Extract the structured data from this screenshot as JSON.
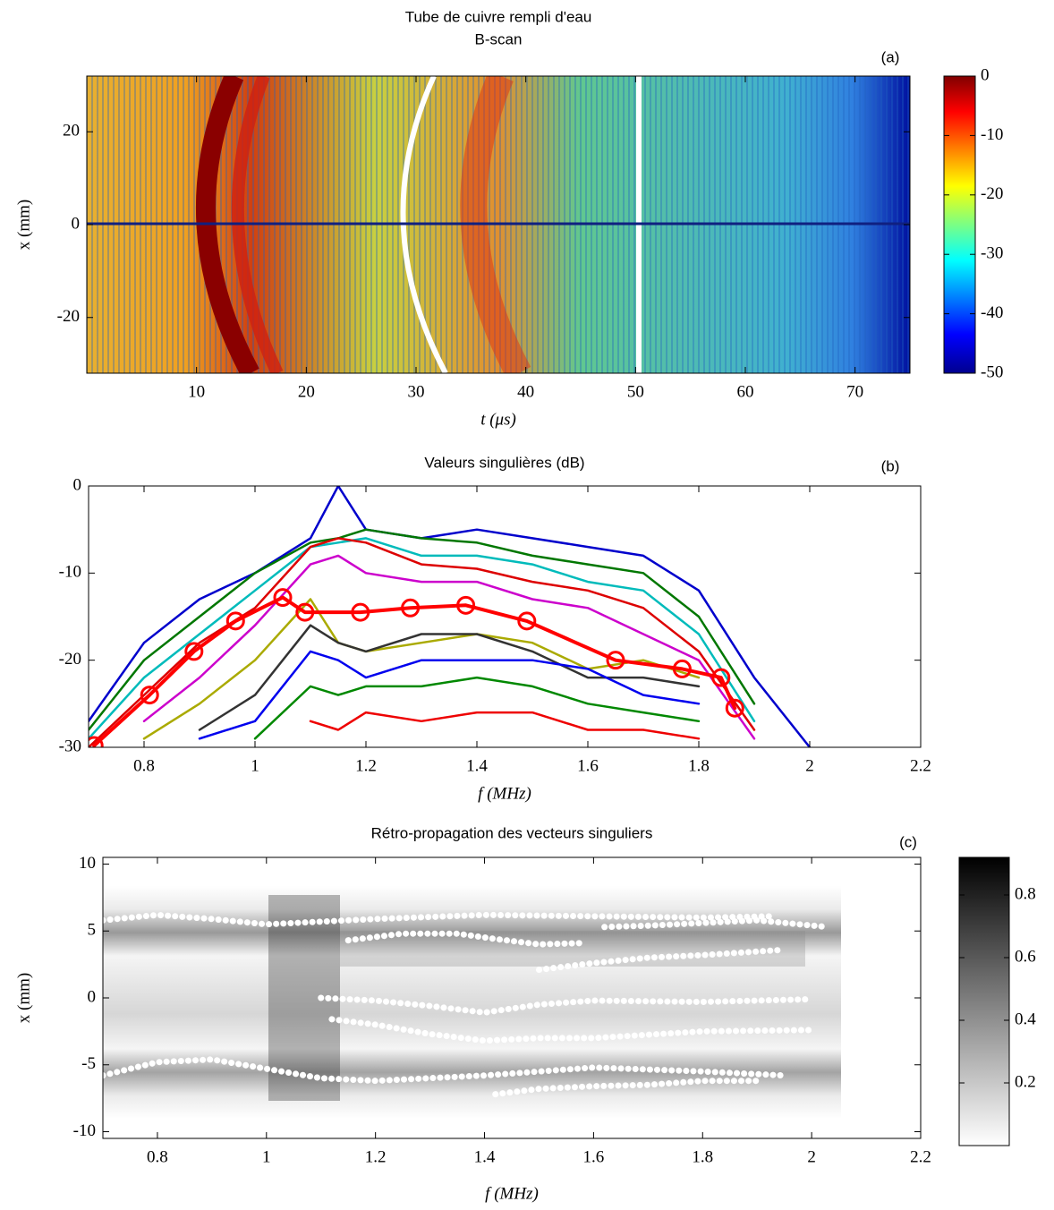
{
  "chart_data": [
    {
      "type": "heatmap",
      "title": "Tube de cuivre rempli d'eau",
      "subtitle": "B-scan",
      "panel_label": "(a)",
      "x_label": "t (μs)",
      "y_label": "x (mm)",
      "xlim": [
        0,
        75
      ],
      "xticks": [
        10,
        20,
        30,
        40,
        50,
        60,
        70
      ],
      "ylim": [
        -32,
        32
      ],
      "yticks": [
        -20,
        0,
        20
      ],
      "colormap": "jet",
      "clim": [
        -50,
        0
      ],
      "cticks": [
        0,
        -10,
        -20,
        -30,
        -40,
        -50
      ]
    },
    {
      "type": "line",
      "title": "Valeurs singulières (dB)",
      "panel_label": "(b)",
      "x_label": "f (MHz)",
      "xlim": [
        0.7,
        2.2
      ],
      "xticks": [
        0.8,
        1,
        1.2,
        1.4,
        1.6,
        1.8,
        2,
        2.2
      ],
      "ylim": [
        -30,
        0
      ],
      "yticks": [
        0,
        -10,
        -20,
        -30
      ],
      "x": [
        0.7,
        0.8,
        0.9,
        1.0,
        1.1,
        1.15,
        1.2,
        1.3,
        1.4,
        1.5,
        1.6,
        1.7,
        1.8,
        1.9,
        2.0
      ],
      "series": [
        {
          "color": "#0000cc",
          "values": [
            -27,
            -18,
            -13,
            -10,
            -6,
            0,
            -5,
            -6,
            -5,
            -6,
            -7,
            -8,
            -12,
            -22,
            -30
          ]
        },
        {
          "color": "#007700",
          "values": [
            -28,
            -20,
            -15,
            -10,
            -6.5,
            -6,
            -5,
            -6,
            -6.5,
            -8,
            -9,
            -10,
            -15,
            -25,
            null
          ]
        },
        {
          "color": "#00bbbb",
          "values": [
            -29,
            -22,
            -17,
            -12,
            -7,
            -6.5,
            -6,
            -8,
            -8,
            -9,
            -11,
            -12,
            -17,
            -27,
            null
          ]
        },
        {
          "color": "#dd0000",
          "values": [
            -30,
            -24,
            -18,
            -14,
            -7,
            -6,
            -6.5,
            -9,
            -9.5,
            -11,
            -12,
            -14,
            -19,
            -28,
            null
          ]
        },
        {
          "color": "#cc00cc",
          "values": [
            null,
            -27,
            -22,
            -16,
            -9,
            -8,
            -10,
            -11,
            -11,
            -13,
            -14,
            -17,
            -20,
            -29,
            null
          ]
        },
        {
          "color": "#aaaa00",
          "values": [
            null,
            -29,
            -25,
            -20,
            -13,
            -18,
            -19,
            -18,
            -17,
            -18,
            -21,
            -20,
            -22,
            null,
            null
          ]
        },
        {
          "color": "#333333",
          "values": [
            null,
            null,
            -28,
            -24,
            -16,
            -18,
            -19,
            -17,
            -17,
            -19,
            -22,
            -22,
            -23,
            null,
            null
          ]
        },
        {
          "color": "#0000ee",
          "values": [
            null,
            null,
            -29,
            -27,
            -19,
            -20,
            -22,
            -20,
            -20,
            -20,
            -21,
            -24,
            -25,
            null,
            null
          ]
        },
        {
          "color": "#008800",
          "values": [
            null,
            null,
            null,
            -29,
            -23,
            -24,
            -23,
            -23,
            -22,
            -23,
            -25,
            -26,
            -27,
            null,
            null
          ]
        },
        {
          "color": "#ee0000",
          "values": [
            null,
            null,
            null,
            null,
            -27,
            -28,
            -26,
            -27,
            -26,
            -26,
            -28,
            -28,
            -29,
            null,
            null
          ]
        },
        {
          "color": "#ff0000",
          "marker": "circle",
          "x": [
            0.71,
            0.81,
            0.89,
            0.965,
            1.05,
            1.09,
            1.19,
            1.28,
            1.38,
            1.49,
            1.65,
            1.77,
            1.84,
            1.865
          ],
          "values": [
            -29.8,
            -24,
            -19,
            -15.5,
            -12.8,
            -14.5,
            -14.5,
            -14,
            -13.7,
            -15.5,
            -20,
            -21,
            -22,
            -25.5
          ]
        }
      ]
    },
    {
      "type": "heatmap",
      "title": "Rétro-propagation des vecteurs singuliers",
      "panel_label": "(c)",
      "x_label": "f (MHz)",
      "y_label": "x (mm)",
      "xlim": [
        0.7,
        2.2
      ],
      "xticks": [
        0.8,
        1,
        1.2,
        1.4,
        1.6,
        1.8,
        2,
        2.2
      ],
      "ylim": [
        -10.5,
        10.5
      ],
      "yticks": [
        10,
        5,
        0,
        -5,
        -10
      ],
      "colormap": "gray",
      "clim": [
        0,
        0.92
      ],
      "cticks": [
        0.8,
        0.6,
        0.4,
        0.2
      ],
      "series": [
        {
          "color": "#ffffff",
          "x": [
            0.7,
            0.8,
            0.9,
            1.0,
            1.2,
            1.4,
            1.6,
            1.8,
            1.93
          ],
          "values": [
            5.8,
            6.2,
            5.9,
            5.5,
            5.9,
            6.2,
            6.1,
            6.0,
            6.1
          ]
        },
        {
          "color": "#ffffff",
          "x": [
            0.7,
            0.8,
            0.9,
            1.0,
            1.1,
            1.2,
            1.4,
            1.6,
            1.8,
            1.95
          ],
          "values": [
            -5.8,
            -4.8,
            -4.6,
            -5.3,
            -6.0,
            -6.2,
            -5.8,
            -5.2,
            -5.5,
            -5.8
          ]
        },
        {
          "color": "#ffffff",
          "x": [
            1.12,
            1.2,
            1.3,
            1.4,
            1.5,
            1.6,
            1.8,
            2.0
          ],
          "values": [
            -1.6,
            -2.0,
            -2.7,
            -3.2,
            -3.0,
            -3.0,
            -2.5,
            -2.4
          ]
        },
        {
          "color": "#ffffff",
          "x": [
            1.1,
            1.2,
            1.3,
            1.4,
            1.5,
            1.6,
            1.8,
            2.0
          ],
          "values": [
            0,
            -0.2,
            -0.6,
            -1.1,
            -0.5,
            -0.2,
            -0.3,
            -0.1
          ]
        },
        {
          "color": "#ffffff",
          "x": [
            1.15,
            1.25,
            1.35,
            1.42,
            1.5,
            1.58
          ],
          "values": [
            4.3,
            4.8,
            4.8,
            4.4,
            4.0,
            4.1
          ]
        },
        {
          "color": "#ffffff",
          "x": [
            1.42,
            1.5,
            1.6,
            1.7,
            1.8,
            1.9
          ],
          "values": [
            -7.2,
            -6.8,
            -6.6,
            -6.5,
            -6.2,
            -6.2
          ]
        },
        {
          "color": "#ffffff",
          "x": [
            1.62,
            1.7,
            1.8,
            1.9,
            2.03
          ],
          "values": [
            5.3,
            5.4,
            5.6,
            5.8,
            5.3
          ]
        },
        {
          "color": "#ffffff",
          "x": [
            1.5,
            1.6,
            1.7,
            1.8,
            1.95
          ],
          "values": [
            2.1,
            2.6,
            3.0,
            3.2,
            3.6
          ]
        }
      ]
    }
  ]
}
